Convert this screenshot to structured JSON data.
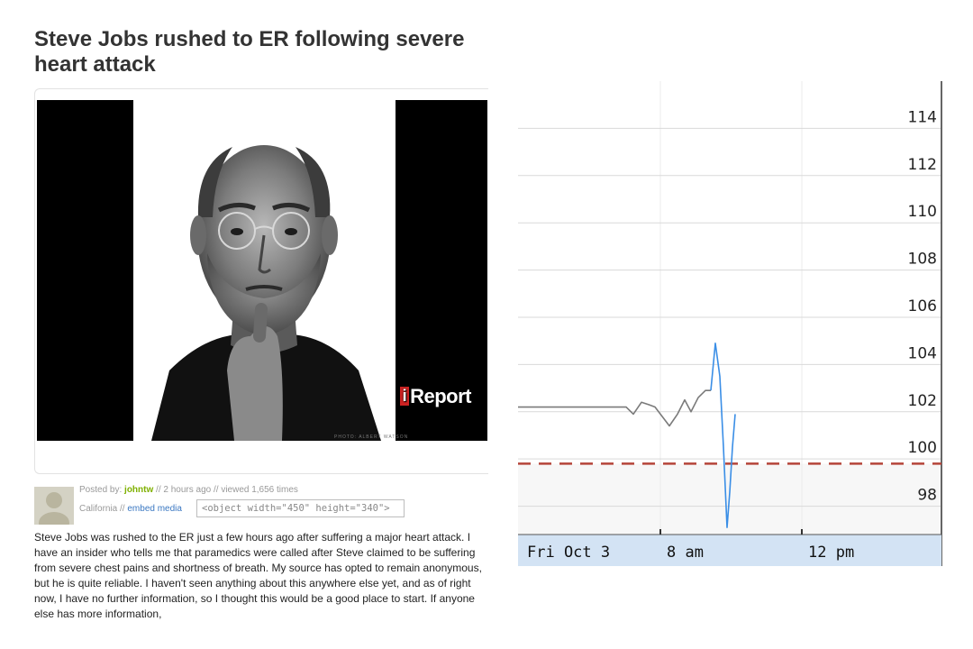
{
  "article": {
    "headline": "Steve Jobs rushed to ER following severe heart attack",
    "watermark": {
      "mark": "i",
      "text": "Report"
    },
    "photo_credit": "PHOTO: ALBERT WATSON",
    "meta": {
      "posted_by_prefix": "Posted by:",
      "username": "johntw",
      "time_views": "// 2 hours ago // viewed 1,656 times",
      "location": "California //",
      "embed_link": "embed media",
      "embed_code": "<object width=\"450\" height=\"340\">"
    },
    "body": "Steve Jobs was rushed to the ER just a few hours ago after suffering a major heart attack. I have an insider who tells me that paramedics were called after Steve claimed to be suffering from severe chest pains and shortness of breath. My source has opted to remain anonymous, but he is quite reliable. I haven't seen anything about this anywhere else yet, and as of right now, I have no further information, so I thought this would be a good place to start. If anyone else has more information,"
  },
  "chart_data": {
    "type": "line",
    "title": "",
    "xlabel": "",
    "ylabel": "",
    "x_tick_labels": [
      "Fri Oct 3",
      "8 am",
      "12 pm"
    ],
    "y_ticks": [
      98,
      100,
      102,
      104,
      106,
      108,
      110,
      112,
      114
    ],
    "ylim": [
      96.8,
      116
    ],
    "xlim": [
      0,
      470
    ],
    "grid": true,
    "reference_line": {
      "value": 99.8,
      "style": "dashed",
      "color": "#b5443a"
    },
    "series": [
      {
        "color": "#7a7a7a",
        "x": [
          0,
          120,
          128,
          137,
          145,
          152,
          160,
          168,
          177,
          185,
          192,
          200,
          208,
          214
        ],
        "y": [
          102.2,
          102.2,
          101.9,
          102.4,
          102.3,
          102.2,
          101.8,
          101.4,
          101.9,
          102.5,
          102.0,
          102.6,
          102.9,
          102.9
        ]
      },
      {
        "color": "#3a8ee6",
        "x": [
          214,
          219,
          224,
          228,
          232,
          235,
          238,
          241
        ],
        "y": [
          102.9,
          104.9,
          103.5,
          100.5,
          97.1,
          98.6,
          100.5,
          101.9
        ]
      }
    ]
  }
}
